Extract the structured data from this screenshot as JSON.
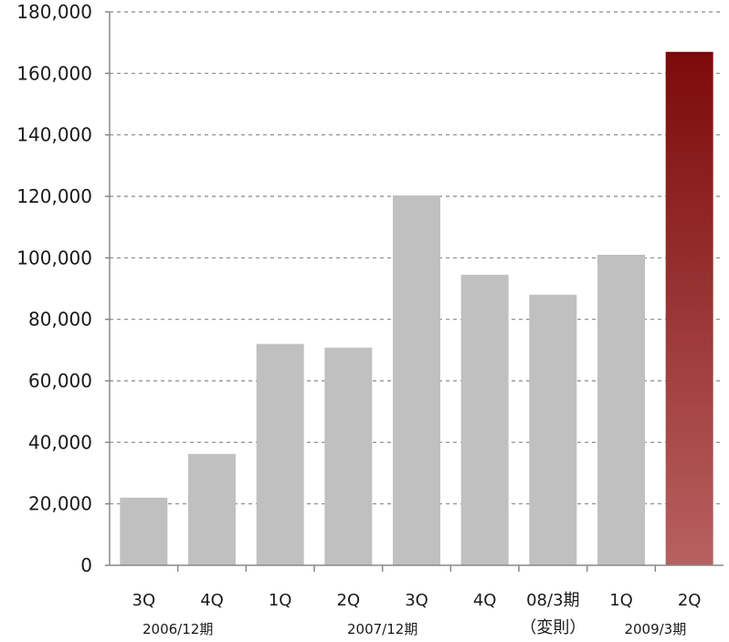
{
  "chart_data": {
    "type": "bar",
    "categories": [
      "3Q",
      "4Q",
      "1Q",
      "2Q",
      "3Q",
      "4Q",
      "08/3期",
      "1Q",
      "2Q"
    ],
    "values": [
      22000,
      36200,
      72000,
      70800,
      120300,
      94500,
      88000,
      101000,
      167000
    ],
    "highlight_index": 8,
    "category_notes": [
      "",
      "",
      "",
      "",
      "",
      "",
      "（変則）",
      "",
      ""
    ],
    "groups": [
      {
        "label": "2006/12期",
        "from": 0,
        "to": 1
      },
      {
        "label": "2007/12期",
        "from": 2,
        "to": 5
      },
      {
        "label": "2009/3期",
        "from": 7,
        "to": 8
      }
    ],
    "yticks": [
      "0",
      "20,000",
      "40,000",
      "60,000",
      "80,000",
      "100,000",
      "120,000",
      "140,000",
      "160,000",
      "180,000"
    ],
    "ylim": [
      0,
      180000
    ],
    "grid": true,
    "title": "",
    "xlabel": "",
    "ylabel": "",
    "colors": {
      "bar": "#c0c0c0",
      "highlight_top": "#7d0a0a",
      "highlight_bottom": "#b86060",
      "grid": "#888888",
      "axis": "#888888"
    }
  }
}
